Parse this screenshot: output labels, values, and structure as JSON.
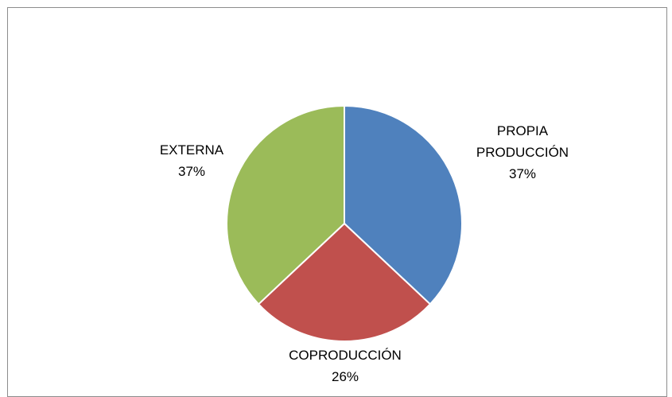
{
  "chart_data": {
    "type": "pie",
    "title": "",
    "slices": [
      {
        "label_lines": [
          "PROPIA",
          "PRODUCCIÓN"
        ],
        "percent_label": "37%",
        "value": 37,
        "color": "#4f81bd"
      },
      {
        "label_lines": [
          "COPRODUCCIÓN"
        ],
        "percent_label": "26%",
        "value": 26,
        "color": "#c0504d"
      },
      {
        "label_lines": [
          "EXTERNA"
        ],
        "percent_label": "37%",
        "value": 37,
        "color": "#9bbb59"
      }
    ],
    "start": "12 o'clock",
    "direction": "clockwise",
    "legend": "none"
  }
}
